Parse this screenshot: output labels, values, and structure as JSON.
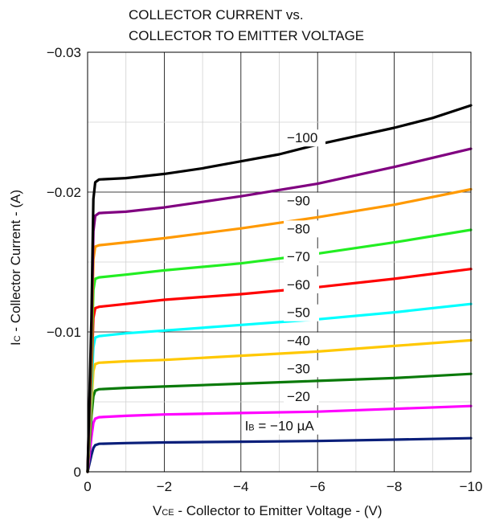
{
  "chart_data": {
    "type": "line",
    "title_lines": [
      "COLLECTOR CURRENT vs.",
      "COLLECTOR TO EMITTER VOLTAGE"
    ],
    "xlabel": {
      "symbol": "V",
      "subscript": "CE",
      "text": " - Collector to Emitter Voltage - (V)"
    },
    "ylabel": {
      "symbol": "I",
      "subscript": "C",
      "text": " - Collector Current - (A)"
    },
    "xlim": [
      0,
      -10
    ],
    "ylim": [
      0,
      -0.03
    ],
    "x_ticks": [
      "0",
      "−2",
      "−4",
      "−6",
      "−8",
      "−10"
    ],
    "y_ticks": [
      "0",
      "−0.01",
      "−0.02",
      "−0.03"
    ],
    "grid": true,
    "parameter": "I_B (µA)",
    "series": [
      {
        "name": "Iʙ = −10 µA",
        "color": "#0a1f7a",
        "x": [
          0,
          -0.05,
          -0.1,
          -0.15,
          -0.2,
          -0.3,
          -1,
          -2,
          -4,
          -6,
          -8,
          -10
        ],
        "y": [
          0,
          -0.0006,
          -0.0012,
          -0.0017,
          -0.0019,
          -0.002,
          -0.00205,
          -0.0021,
          -0.00215,
          -0.0022,
          -0.0023,
          -0.0024
        ]
      },
      {
        "name": "−20",
        "color": "#ff00ff",
        "x": [
          0,
          -0.05,
          -0.1,
          -0.15,
          -0.2,
          -0.3,
          -1,
          -2,
          -4,
          -6,
          -8,
          -10
        ],
        "y": [
          0,
          -0.0012,
          -0.0025,
          -0.0035,
          -0.0038,
          -0.0039,
          -0.004,
          -0.0041,
          -0.0042,
          -0.0043,
          -0.0045,
          -0.0047
        ]
      },
      {
        "name": "−30",
        "color": "#0a7a0a",
        "x": [
          0,
          -0.05,
          -0.1,
          -0.15,
          -0.2,
          -0.3,
          -1,
          -2,
          -4,
          -6,
          -8,
          -10
        ],
        "y": [
          0,
          -0.002,
          -0.004,
          -0.0054,
          -0.0058,
          -0.0059,
          -0.006,
          -0.0061,
          -0.0063,
          -0.0065,
          -0.0067,
          -0.007
        ]
      },
      {
        "name": "−40",
        "color": "#ffc800",
        "x": [
          0,
          -0.05,
          -0.1,
          -0.15,
          -0.2,
          -0.3,
          -1,
          -2,
          -4,
          -6,
          -8,
          -10
        ],
        "y": [
          0,
          -0.0025,
          -0.005,
          -0.0072,
          -0.0077,
          -0.0078,
          -0.0079,
          -0.008,
          -0.0083,
          -0.0086,
          -0.009,
          -0.0094
        ]
      },
      {
        "name": "−50",
        "color": "#00ffff",
        "x": [
          0,
          -0.05,
          -0.1,
          -0.15,
          -0.2,
          -0.3,
          -1,
          -2,
          -4,
          -6,
          -8,
          -10
        ],
        "y": [
          0,
          -0.003,
          -0.006,
          -0.0089,
          -0.0096,
          -0.0097,
          -0.0099,
          -0.0101,
          -0.0105,
          -0.0109,
          -0.0114,
          -0.012
        ]
      },
      {
        "name": "−60",
        "color": "#ff0000",
        "x": [
          0,
          -0.05,
          -0.1,
          -0.15,
          -0.2,
          -0.3,
          -1,
          -2,
          -4,
          -6,
          -8,
          -10
        ],
        "y": [
          0,
          -0.0035,
          -0.007,
          -0.011,
          -0.0117,
          -0.0118,
          -0.012,
          -0.0123,
          -0.0127,
          -0.0132,
          -0.0138,
          -0.0145
        ]
      },
      {
        "name": "−70",
        "color": "#22ee22",
        "x": [
          0,
          -0.05,
          -0.1,
          -0.15,
          -0.2,
          -0.3,
          -1,
          -2,
          -4,
          -6,
          -8,
          -10
        ],
        "y": [
          0,
          -0.004,
          -0.008,
          -0.013,
          -0.0138,
          -0.0139,
          -0.0141,
          -0.0144,
          -0.0149,
          -0.0156,
          -0.0164,
          -0.0173
        ]
      },
      {
        "name": "−80",
        "color": "#ff9900",
        "x": [
          0,
          -0.05,
          -0.1,
          -0.15,
          -0.2,
          -0.3,
          -1,
          -2,
          -4,
          -6,
          -8,
          -10
        ],
        "y": [
          0,
          -0.0045,
          -0.009,
          -0.0152,
          -0.0161,
          -0.0162,
          -0.0164,
          -0.0167,
          -0.0174,
          -0.0182,
          -0.0191,
          -0.0202
        ]
      },
      {
        "name": "−90",
        "color": "#800080",
        "x": [
          0,
          -0.05,
          -0.1,
          -0.15,
          -0.2,
          -0.3,
          -1,
          -2,
          -4,
          -6,
          -8,
          -10
        ],
        "y": [
          0,
          -0.005,
          -0.01,
          -0.0172,
          -0.0183,
          -0.0185,
          -0.0186,
          -0.0189,
          -0.0197,
          -0.0206,
          -0.0218,
          -0.0231
        ]
      },
      {
        "name": "−100",
        "color": "#000000",
        "x": [
          0,
          -0.05,
          -0.1,
          -0.15,
          -0.2,
          -0.3,
          -1,
          -2,
          -3,
          -4,
          -5,
          -6,
          -7,
          -8,
          -9,
          -10
        ],
        "y": [
          0,
          -0.0055,
          -0.011,
          -0.0195,
          -0.0207,
          -0.0209,
          -0.021,
          -0.0213,
          -0.0217,
          -0.0222,
          -0.0227,
          -0.0234,
          -0.024,
          -0.0246,
          -0.0253,
          -0.0262
        ]
      }
    ],
    "curve_labels": [
      {
        "text": "I",
        "sub": "B",
        "rest": " = −10 µA"
      },
      {
        "text": "−20"
      },
      {
        "text": "−30"
      },
      {
        "text": "−40"
      },
      {
        "text": "−50"
      },
      {
        "text": "−60"
      },
      {
        "text": "−70"
      },
      {
        "text": "−80"
      },
      {
        "text": "−90"
      },
      {
        "text": "−100"
      }
    ]
  }
}
